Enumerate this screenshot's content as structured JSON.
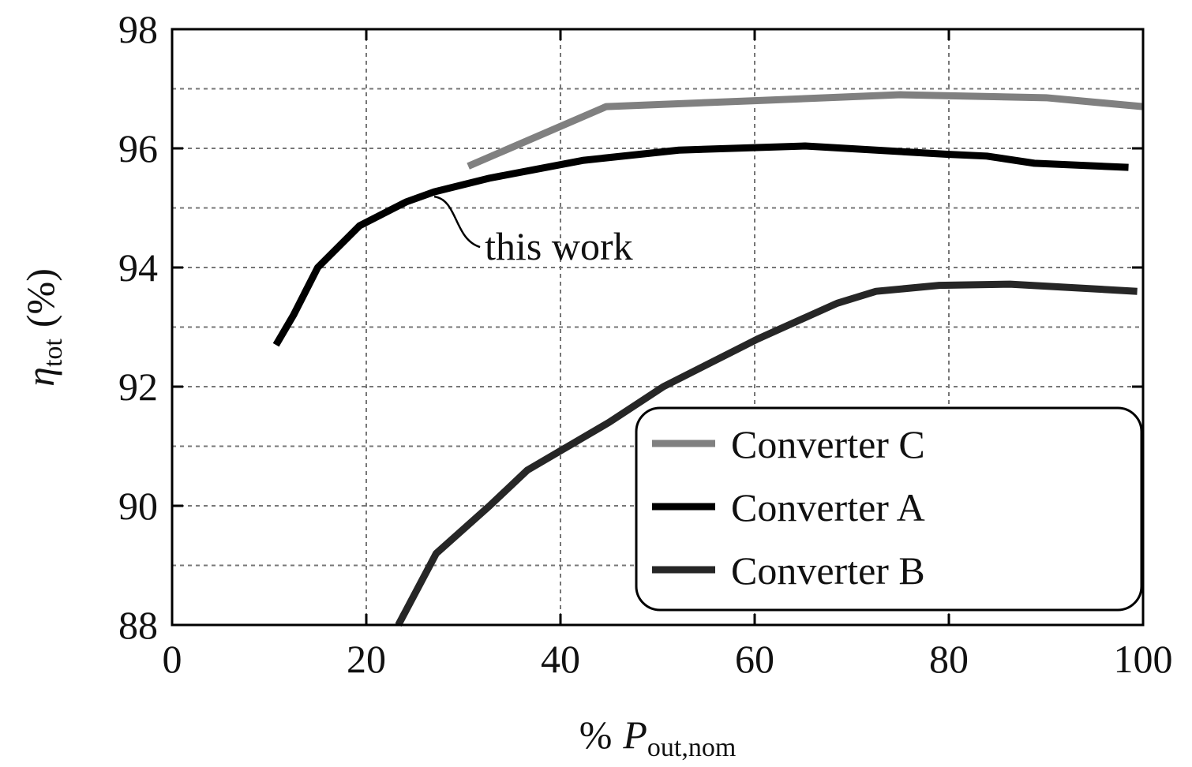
{
  "chart_data": {
    "type": "line",
    "xlabel": {
      "prefix": "%",
      "symbol": "P",
      "subscript": "out,nom"
    },
    "ylabel": {
      "symbol": "η",
      "subscript": "tot",
      "unit": "(%)"
    },
    "xlim": [
      0,
      100
    ],
    "xticks": [
      0,
      20,
      40,
      60,
      80,
      100
    ],
    "ylim": [
      88,
      98
    ],
    "yticks": [
      88,
      90,
      92,
      94,
      96,
      98
    ],
    "y_minor_grid": [
      89,
      91,
      93,
      95,
      97
    ],
    "grid": true,
    "legend": "lower right",
    "series": [
      {
        "name": "Converter C",
        "color": "#808080",
        "x": [
          30.5,
          44.7,
          60,
          75,
          90,
          100
        ],
        "values": [
          95.7,
          96.7,
          96.8,
          96.9,
          96.85,
          96.7
        ]
      },
      {
        "name": "Converter A",
        "color": "#000000",
        "x": [
          10.7,
          12.5,
          15,
          19.3,
          24.1,
          27,
          32.7,
          42.4,
          52.2,
          65.2,
          79.8,
          83.9,
          88.8,
          98.5
        ],
        "values": [
          92.7,
          93.2,
          94.0,
          94.7,
          95.1,
          95.27,
          95.5,
          95.8,
          95.97,
          96.04,
          95.9,
          95.87,
          95.75,
          95.68
        ]
      },
      {
        "name": "Converter B",
        "color": "#262626",
        "x": [
          23.3,
          27.2,
          32.7,
          36.6,
          45,
          50.6,
          60.3,
          68.5,
          72.5,
          79,
          86.3,
          99.4
        ],
        "values": [
          88.0,
          89.2,
          90.0,
          90.6,
          91.4,
          92.0,
          92.8,
          93.4,
          93.6,
          93.7,
          93.72,
          93.6
        ]
      }
    ],
    "annotation": {
      "text": "this work",
      "x": 27,
      "y": 95.27
    }
  }
}
